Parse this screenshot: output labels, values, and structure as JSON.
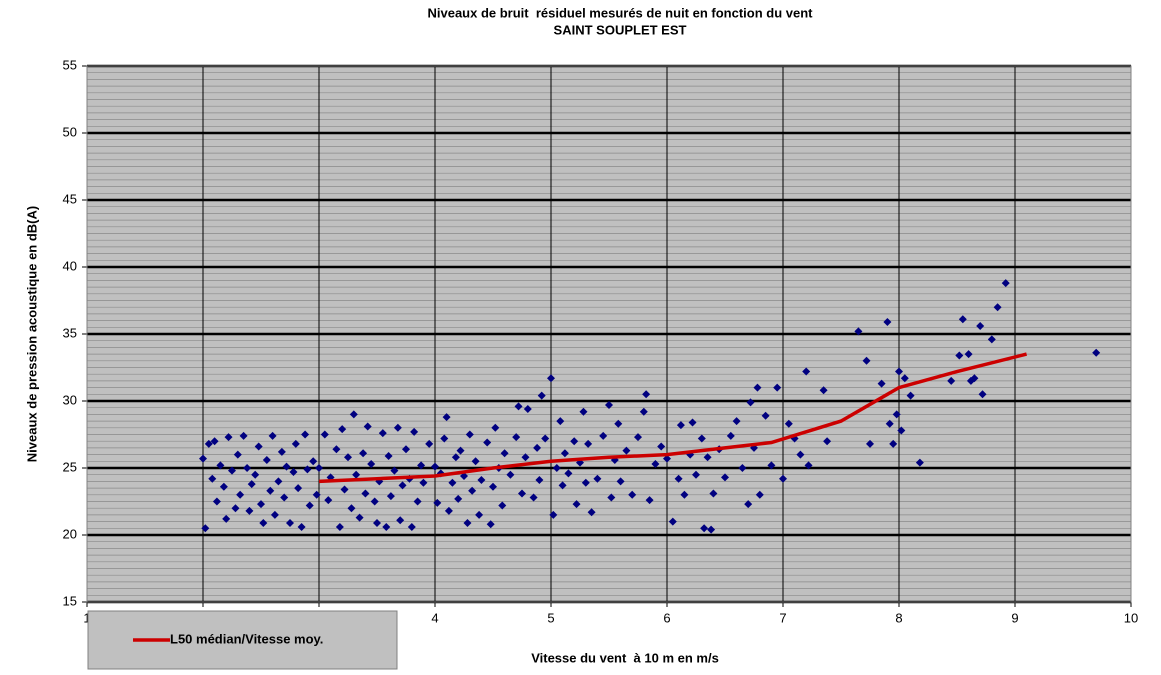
{
  "chart_data": {
    "type": "scatter",
    "title": "Niveaux de bruit  résiduel mesurés de nuit en fonction du vent",
    "subtitle": "SAINT SOUPLET EST",
    "x_label": "Vitesse du vent  à 10 m en m/s",
    "y_label": "Niveaux de pression acoustique en dB(A)",
    "xlim": [
      1,
      10
    ],
    "xticks": [
      1,
      2,
      3,
      4,
      5,
      6,
      7,
      8,
      9,
      10
    ],
    "ylim": [
      15,
      55
    ],
    "yticks": [
      15,
      20,
      25,
      30,
      35,
      40,
      45,
      50,
      55
    ],
    "yminor": 0.5,
    "grid": true,
    "background": "#c0c0c0",
    "legend": "bottom-left",
    "series": [
      {
        "type": "scatter",
        "color": "#000080",
        "x": [
          2.0,
          2.02,
          2.05,
          2.08,
          2.1,
          2.12,
          2.15,
          2.18,
          2.2,
          2.22,
          2.25,
          2.28,
          2.3,
          2.32,
          2.35,
          2.38,
          2.4,
          2.42,
          2.45,
          2.48,
          2.5,
          2.52,
          2.55,
          2.58,
          2.6,
          2.62,
          2.65,
          2.68,
          2.7,
          2.72,
          2.75,
          2.78,
          2.8,
          2.82,
          2.85,
          2.88,
          2.9,
          2.92,
          2.95,
          2.98,
          3.0,
          3.05,
          3.08,
          3.1,
          3.15,
          3.18,
          3.2,
          3.22,
          3.25,
          3.28,
          3.3,
          3.32,
          3.35,
          3.38,
          3.4,
          3.42,
          3.45,
          3.48,
          3.5,
          3.52,
          3.55,
          3.58,
          3.6,
          3.62,
          3.65,
          3.68,
          3.7,
          3.72,
          3.75,
          3.78,
          3.8,
          3.82,
          3.85,
          3.88,
          3.9,
          3.95,
          4.0,
          4.02,
          4.05,
          4.08,
          4.1,
          4.12,
          4.15,
          4.18,
          4.2,
          4.22,
          4.25,
          4.28,
          4.3,
          4.32,
          4.35,
          4.38,
          4.4,
          4.45,
          4.48,
          4.5,
          4.52,
          4.55,
          4.58,
          4.6,
          4.65,
          4.7,
          4.72,
          4.75,
          4.78,
          4.8,
          4.85,
          4.88,
          4.9,
          4.92,
          4.95,
          5.0,
          5.02,
          5.05,
          5.08,
          5.1,
          5.12,
          5.15,
          5.2,
          5.22,
          5.25,
          5.28,
          5.3,
          5.32,
          5.35,
          5.4,
          5.45,
          5.5,
          5.52,
          5.55,
          5.58,
          5.6,
          5.65,
          5.7,
          5.75,
          5.8,
          5.82,
          5.85,
          5.9,
          5.95,
          6.0,
          6.05,
          6.1,
          6.12,
          6.15,
          6.2,
          6.22,
          6.25,
          6.3,
          6.32,
          6.35,
          6.38,
          6.4,
          6.45,
          6.5,
          6.55,
          6.6,
          6.65,
          6.7,
          6.72,
          6.75,
          6.78,
          6.8,
          6.85,
          6.9,
          6.95,
          7.0,
          7.05,
          7.1,
          7.15,
          7.2,
          7.22,
          7.35,
          7.38,
          7.65,
          7.72,
          7.75,
          7.85,
          7.9,
          7.92,
          7.95,
          7.98,
          8.0,
          8.02,
          8.05,
          8.1,
          8.18,
          8.45,
          8.52,
          8.55,
          8.6,
          8.62,
          8.65,
          8.7,
          8.72,
          8.8,
          8.85,
          8.92,
          9.7
        ],
        "values": [
          25.7,
          20.5,
          26.8,
          24.2,
          27.0,
          22.5,
          25.2,
          23.6,
          21.2,
          27.3,
          24.8,
          22.0,
          26.0,
          23.0,
          27.4,
          25.0,
          21.8,
          23.8,
          24.5,
          26.6,
          22.3,
          20.9,
          25.6,
          23.3,
          27.4,
          21.5,
          24.0,
          26.2,
          22.8,
          25.1,
          20.9,
          24.7,
          26.8,
          23.5,
          20.6,
          27.5,
          24.9,
          22.2,
          25.5,
          23.0,
          25.0,
          27.5,
          22.6,
          24.3,
          26.4,
          20.6,
          27.9,
          23.4,
          25.8,
          22.0,
          29.0,
          24.5,
          21.3,
          26.1,
          23.1,
          28.1,
          25.3,
          22.5,
          20.9,
          24.0,
          27.6,
          20.6,
          25.9,
          22.9,
          24.8,
          28.0,
          21.1,
          23.7,
          26.4,
          24.2,
          20.6,
          27.7,
          22.5,
          25.2,
          23.9,
          26.8,
          25.1,
          22.4,
          24.6,
          27.2,
          28.8,
          21.8,
          23.9,
          25.8,
          22.7,
          26.3,
          24.4,
          20.9,
          27.5,
          23.3,
          25.5,
          21.5,
          24.1,
          26.9,
          20.8,
          23.6,
          28.0,
          25.0,
          22.2,
          26.1,
          24.5,
          27.3,
          29.6,
          23.1,
          25.8,
          29.4,
          22.8,
          26.5,
          24.1,
          30.4,
          27.2,
          31.7,
          21.5,
          25.0,
          28.5,
          23.7,
          26.1,
          24.6,
          27.0,
          22.3,
          25.4,
          29.2,
          23.9,
          26.8,
          21.7,
          24.2,
          27.4,
          29.7,
          22.8,
          25.6,
          28.3,
          24.0,
          26.3,
          23.0,
          27.3,
          29.2,
          30.5,
          22.6,
          25.3,
          26.6,
          25.7,
          21.0,
          24.2,
          28.2,
          23.0,
          26.0,
          28.4,
          24.5,
          27.2,
          20.5,
          25.8,
          20.4,
          23.1,
          26.4,
          24.3,
          27.4,
          28.5,
          25.0,
          22.3,
          29.9,
          26.5,
          31.0,
          23.0,
          28.9,
          25.2,
          31.0,
          24.2,
          28.3,
          27.2,
          26.0,
          32.2,
          25.2,
          30.8,
          27.0,
          35.2,
          33.0,
          26.8,
          31.3,
          35.9,
          28.3,
          26.8,
          29.0,
          32.2,
          27.8,
          31.7,
          30.4,
          25.4,
          31.5,
          33.4,
          36.1,
          33.5,
          31.5,
          31.7,
          35.6,
          30.5,
          34.6,
          37.0,
          38.8,
          33.6
        ]
      },
      {
        "type": "line",
        "name": "L50 médian/Vitesse moy.",
        "color": "#cc0000",
        "x": [
          3.0,
          3.5,
          4.0,
          4.5,
          5.0,
          5.5,
          6.0,
          6.5,
          6.9,
          7.5,
          8.0,
          8.5,
          9.1
        ],
        "values": [
          24.0,
          24.2,
          24.4,
          25.0,
          25.5,
          25.8,
          26.0,
          26.5,
          26.9,
          28.5,
          31.0,
          32.2,
          33.5
        ]
      }
    ]
  }
}
